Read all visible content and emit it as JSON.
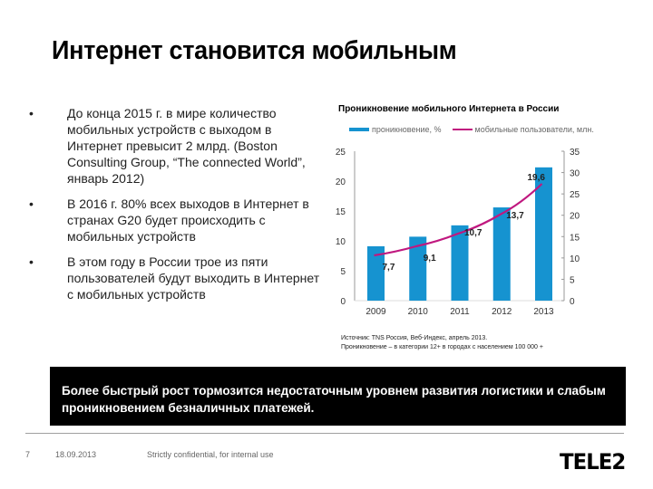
{
  "slide": {
    "title": "Интернет становится мобильным",
    "bullets": [
      {
        "marker": "•",
        "text": "До конца 2015 г. в мире количество мобильных устройств с выходом в Интернет превысит 2 млрд. (Boston Consulting Group, “The connected World”, январь 2012)"
      },
      {
        "marker": "•",
        "text": "В 2016 г. 80% всех выходов в Интернет в странах G20 будет происходить с мобильных устройств"
      },
      {
        "marker": "•",
        "text": "В этом году в России трое из пяти пользователей будут выходить в Интернет с мобильных устройств"
      }
    ],
    "source_lines": [
      "Источник: TNS Россия, Веб-Индекс, апрель 2013.",
      "Проникновение – в категории 12+ в городах с населением 100 000 +"
    ],
    "banner_text": "Более быстрый рост тормозится недостаточным уровнем развития логистики и слабым проникновением безналичных платежей.",
    "footer": {
      "page_number": "7",
      "date": "18.09.2013",
      "confidentiality": "Strictly confidential, for internal use",
      "logo": "TELE2"
    }
  },
  "colors": {
    "bar": "#1693d0",
    "line": "#c0187f",
    "banner_bg": "#000000"
  },
  "chart_data": {
    "type": "bar",
    "title": "Проникновение мобильного Интернета в России",
    "categories": [
      "2009",
      "2010",
      "2011",
      "2012",
      "2013"
    ],
    "series": [
      {
        "name": "проникновение, %",
        "type": "bar",
        "axis": "left",
        "values": [
          9.1,
          10.7,
          12.6,
          15.6,
          22.3
        ]
      },
      {
        "name": "мобильные пользователи, млн.",
        "type": "line",
        "axis": "right",
        "values": [
          7.7,
          9.1,
          10.7,
          13.7,
          19.6
        ],
        "data_labels": [
          "7,7",
          "9,1",
          "10,7",
          "13,7",
          "19,6"
        ]
      }
    ],
    "left_axis": {
      "ylim": [
        0,
        25
      ],
      "ticks": [
        "0",
        "5",
        "10",
        "15",
        "20",
        "25"
      ]
    },
    "right_axis": {
      "ylim": [
        0,
        35
      ],
      "ticks": [
        "0",
        "5",
        "10",
        "15",
        "20",
        "25",
        "30",
        "35"
      ]
    },
    "xlabel": "",
    "ylabel": "",
    "legend_position": "top",
    "grid": false
  }
}
